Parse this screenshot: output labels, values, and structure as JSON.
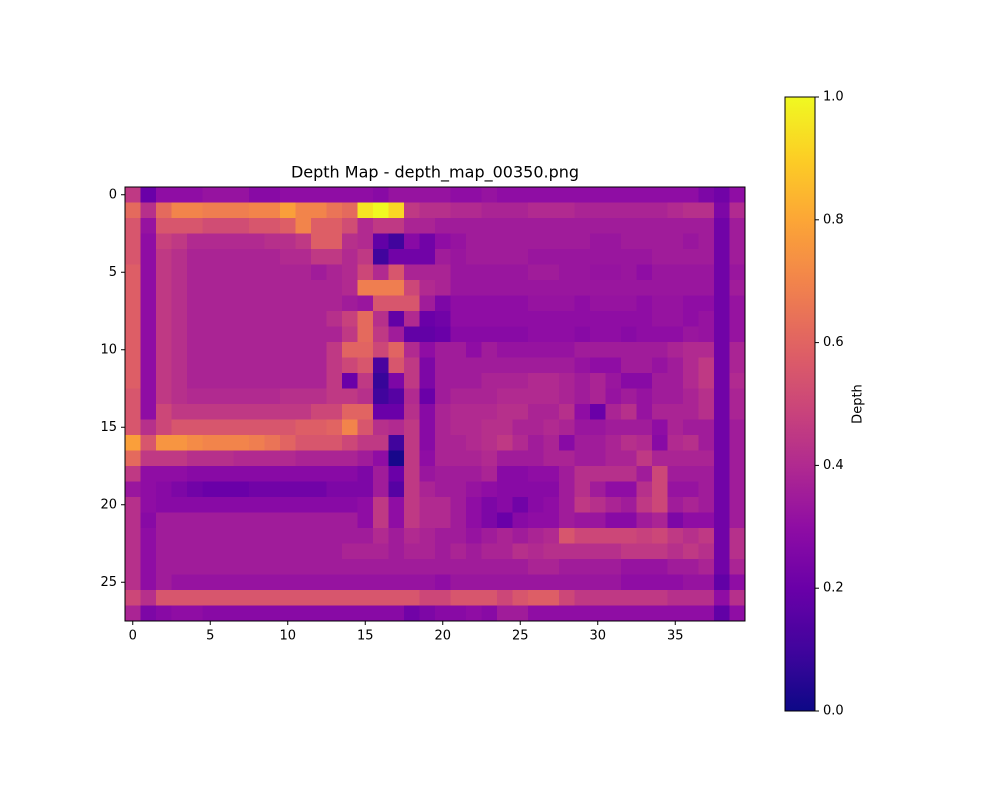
{
  "chart_data": {
    "type": "heatmap",
    "title": "Depth Map - depth_map_00350.png",
    "colormap": "plasma",
    "xlim": [
      -0.5,
      39.5
    ],
    "ylim": [
      27.5,
      -0.5
    ],
    "xticks": [
      0,
      5,
      10,
      15,
      20,
      25,
      30,
      35
    ],
    "yticks": [
      0,
      5,
      10,
      15,
      20,
      25
    ],
    "colorbar": {
      "label": "Depth",
      "lim": [
        0,
        1
      ],
      "ticks": [
        {
          "value": 0,
          "label": "0.0"
        },
        0.2,
        0.4,
        0.6,
        0.8,
        {
          "value": 1,
          "label": "1.0"
        }
      ]
    },
    "values": [
      [
        0.45,
        0.2,
        0.3,
        0.3,
        0.3,
        0.32,
        0.32,
        0.32,
        0.28,
        0.28,
        0.3,
        0.3,
        0.3,
        0.3,
        0.3,
        0.3,
        0.28,
        0.32,
        0.32,
        0.32,
        0.32,
        0.3,
        0.3,
        0.32,
        0.3,
        0.3,
        0.3,
        0.3,
        0.3,
        0.3,
        0.3,
        0.3,
        0.3,
        0.3,
        0.3,
        0.3,
        0.3,
        0.25,
        0.22,
        0.3
      ],
      [
        0.62,
        0.42,
        0.62,
        0.7,
        0.7,
        0.68,
        0.68,
        0.68,
        0.7,
        0.7,
        0.78,
        0.7,
        0.7,
        0.65,
        0.62,
        0.95,
        1.0,
        0.92,
        0.45,
        0.42,
        0.42,
        0.4,
        0.4,
        0.38,
        0.38,
        0.38,
        0.4,
        0.4,
        0.4,
        0.38,
        0.38,
        0.38,
        0.38,
        0.38,
        0.38,
        0.4,
        0.42,
        0.42,
        0.25,
        0.4
      ],
      [
        0.55,
        0.32,
        0.55,
        0.55,
        0.55,
        0.52,
        0.52,
        0.52,
        0.55,
        0.55,
        0.58,
        0.7,
        0.58,
        0.58,
        0.52,
        0.4,
        0.45,
        0.45,
        0.38,
        0.38,
        0.35,
        0.35,
        0.35,
        0.35,
        0.35,
        0.35,
        0.35,
        0.35,
        0.35,
        0.35,
        0.35,
        0.35,
        0.35,
        0.35,
        0.35,
        0.35,
        0.35,
        0.35,
        0.22,
        0.35
      ],
      [
        0.55,
        0.3,
        0.48,
        0.45,
        0.4,
        0.4,
        0.4,
        0.4,
        0.4,
        0.42,
        0.42,
        0.45,
        0.58,
        0.58,
        0.42,
        0.4,
        0.18,
        0.1,
        0.28,
        0.22,
        0.3,
        0.32,
        0.35,
        0.35,
        0.35,
        0.35,
        0.35,
        0.35,
        0.35,
        0.35,
        0.33,
        0.33,
        0.35,
        0.35,
        0.35,
        0.35,
        0.33,
        0.35,
        0.22,
        0.35
      ],
      [
        0.55,
        0.3,
        0.45,
        0.42,
        0.38,
        0.38,
        0.38,
        0.38,
        0.38,
        0.38,
        0.4,
        0.4,
        0.45,
        0.45,
        0.4,
        0.45,
        0.1,
        0.22,
        0.22,
        0.22,
        0.35,
        0.33,
        0.35,
        0.35,
        0.35,
        0.35,
        0.33,
        0.33,
        0.33,
        0.33,
        0.33,
        0.33,
        0.33,
        0.33,
        0.35,
        0.35,
        0.35,
        0.35,
        0.22,
        0.35
      ],
      [
        0.58,
        0.3,
        0.45,
        0.42,
        0.38,
        0.38,
        0.38,
        0.38,
        0.38,
        0.38,
        0.38,
        0.38,
        0.35,
        0.38,
        0.4,
        0.5,
        0.4,
        0.55,
        0.38,
        0.38,
        0.38,
        0.33,
        0.33,
        0.33,
        0.33,
        0.33,
        0.35,
        0.35,
        0.33,
        0.33,
        0.32,
        0.32,
        0.33,
        0.3,
        0.33,
        0.33,
        0.33,
        0.33,
        0.22,
        0.33
      ],
      [
        0.58,
        0.3,
        0.45,
        0.42,
        0.38,
        0.38,
        0.38,
        0.38,
        0.38,
        0.38,
        0.38,
        0.38,
        0.38,
        0.38,
        0.4,
        0.68,
        0.68,
        0.68,
        0.5,
        0.4,
        0.38,
        0.33,
        0.33,
        0.33,
        0.33,
        0.33,
        0.33,
        0.33,
        0.33,
        0.33,
        0.33,
        0.33,
        0.33,
        0.33,
        0.33,
        0.33,
        0.33,
        0.33,
        0.22,
        0.35
      ],
      [
        0.58,
        0.3,
        0.45,
        0.42,
        0.38,
        0.38,
        0.38,
        0.38,
        0.38,
        0.38,
        0.38,
        0.38,
        0.38,
        0.38,
        0.35,
        0.33,
        0.55,
        0.55,
        0.55,
        0.35,
        0.25,
        0.3,
        0.3,
        0.3,
        0.3,
        0.3,
        0.32,
        0.32,
        0.32,
        0.3,
        0.32,
        0.32,
        0.32,
        0.3,
        0.32,
        0.32,
        0.3,
        0.3,
        0.22,
        0.32
      ],
      [
        0.58,
        0.3,
        0.45,
        0.42,
        0.38,
        0.38,
        0.38,
        0.38,
        0.38,
        0.38,
        0.38,
        0.38,
        0.38,
        0.42,
        0.48,
        0.62,
        0.42,
        0.18,
        0.4,
        0.2,
        0.22,
        0.3,
        0.3,
        0.3,
        0.3,
        0.3,
        0.3,
        0.3,
        0.3,
        0.3,
        0.3,
        0.3,
        0.3,
        0.3,
        0.32,
        0.32,
        0.3,
        0.32,
        0.22,
        0.32
      ],
      [
        0.58,
        0.3,
        0.45,
        0.42,
        0.38,
        0.38,
        0.38,
        0.38,
        0.38,
        0.38,
        0.38,
        0.38,
        0.38,
        0.38,
        0.45,
        0.62,
        0.45,
        0.35,
        0.18,
        0.18,
        0.2,
        0.28,
        0.28,
        0.28,
        0.28,
        0.28,
        0.3,
        0.3,
        0.3,
        0.28,
        0.3,
        0.3,
        0.28,
        0.3,
        0.3,
        0.3,
        0.33,
        0.32,
        0.22,
        0.32
      ],
      [
        0.58,
        0.3,
        0.45,
        0.42,
        0.38,
        0.38,
        0.38,
        0.38,
        0.38,
        0.38,
        0.38,
        0.38,
        0.38,
        0.45,
        0.6,
        0.6,
        0.5,
        0.6,
        0.4,
        0.3,
        0.35,
        0.35,
        0.3,
        0.35,
        0.32,
        0.32,
        0.32,
        0.32,
        0.32,
        0.35,
        0.35,
        0.35,
        0.35,
        0.35,
        0.35,
        0.38,
        0.4,
        0.4,
        0.22,
        0.38
      ],
      [
        0.58,
        0.3,
        0.45,
        0.42,
        0.38,
        0.38,
        0.38,
        0.38,
        0.38,
        0.38,
        0.38,
        0.38,
        0.38,
        0.45,
        0.5,
        0.55,
        0.12,
        0.55,
        0.45,
        0.25,
        0.35,
        0.35,
        0.35,
        0.35,
        0.35,
        0.35,
        0.35,
        0.35,
        0.35,
        0.32,
        0.3,
        0.3,
        0.35,
        0.35,
        0.32,
        0.35,
        0.4,
        0.45,
        0.22,
        0.38
      ],
      [
        0.58,
        0.3,
        0.45,
        0.42,
        0.38,
        0.38,
        0.38,
        0.38,
        0.38,
        0.38,
        0.38,
        0.38,
        0.38,
        0.45,
        0.2,
        0.45,
        0.08,
        0.25,
        0.45,
        0.25,
        0.35,
        0.35,
        0.35,
        0.38,
        0.38,
        0.38,
        0.4,
        0.4,
        0.38,
        0.35,
        0.38,
        0.33,
        0.28,
        0.28,
        0.35,
        0.35,
        0.4,
        0.45,
        0.22,
        0.4
      ],
      [
        0.55,
        0.3,
        0.45,
        0.42,
        0.4,
        0.4,
        0.4,
        0.4,
        0.4,
        0.4,
        0.42,
        0.42,
        0.42,
        0.45,
        0.45,
        0.42,
        0.1,
        0.15,
        0.4,
        0.2,
        0.35,
        0.38,
        0.38,
        0.38,
        0.4,
        0.4,
        0.4,
        0.4,
        0.38,
        0.35,
        0.38,
        0.32,
        0.35,
        0.32,
        0.35,
        0.35,
        0.38,
        0.42,
        0.22,
        0.38
      ],
      [
        0.55,
        0.3,
        0.5,
        0.45,
        0.45,
        0.45,
        0.45,
        0.45,
        0.45,
        0.45,
        0.45,
        0.45,
        0.5,
        0.5,
        0.6,
        0.6,
        0.2,
        0.2,
        0.42,
        0.28,
        0.38,
        0.4,
        0.4,
        0.4,
        0.42,
        0.42,
        0.38,
        0.38,
        0.42,
        0.3,
        0.2,
        0.38,
        0.42,
        0.32,
        0.38,
        0.38,
        0.38,
        0.42,
        0.22,
        0.38
      ],
      [
        0.55,
        0.42,
        0.5,
        0.55,
        0.55,
        0.55,
        0.55,
        0.55,
        0.55,
        0.55,
        0.55,
        0.58,
        0.58,
        0.6,
        0.7,
        0.55,
        0.42,
        0.4,
        0.45,
        0.28,
        0.38,
        0.4,
        0.4,
        0.42,
        0.42,
        0.38,
        0.38,
        0.4,
        0.38,
        0.33,
        0.33,
        0.35,
        0.35,
        0.35,
        0.3,
        0.38,
        0.35,
        0.35,
        0.22,
        0.35
      ],
      [
        0.78,
        0.55,
        0.75,
        0.75,
        0.72,
        0.7,
        0.7,
        0.7,
        0.68,
        0.65,
        0.6,
        0.55,
        0.55,
        0.55,
        0.5,
        0.45,
        0.45,
        0.1,
        0.45,
        0.28,
        0.38,
        0.38,
        0.4,
        0.42,
        0.45,
        0.4,
        0.35,
        0.38,
        0.28,
        0.35,
        0.35,
        0.38,
        0.42,
        0.4,
        0.28,
        0.4,
        0.42,
        0.35,
        0.22,
        0.35
      ],
      [
        0.62,
        0.45,
        0.45,
        0.45,
        0.42,
        0.42,
        0.42,
        0.4,
        0.4,
        0.4,
        0.4,
        0.38,
        0.38,
        0.38,
        0.38,
        0.35,
        0.3,
        0.02,
        0.45,
        0.3,
        0.38,
        0.38,
        0.38,
        0.4,
        0.35,
        0.35,
        0.35,
        0.38,
        0.38,
        0.35,
        0.35,
        0.38,
        0.38,
        0.45,
        0.38,
        0.38,
        0.38,
        0.38,
        0.22,
        0.35
      ],
      [
        0.45,
        0.3,
        0.3,
        0.3,
        0.28,
        0.28,
        0.28,
        0.28,
        0.28,
        0.28,
        0.28,
        0.28,
        0.28,
        0.28,
        0.28,
        0.25,
        0.35,
        0.2,
        0.45,
        0.33,
        0.35,
        0.35,
        0.35,
        0.38,
        0.28,
        0.28,
        0.3,
        0.3,
        0.35,
        0.42,
        0.42,
        0.42,
        0.42,
        0.35,
        0.5,
        0.35,
        0.35,
        0.35,
        0.22,
        0.35
      ],
      [
        0.33,
        0.3,
        0.28,
        0.25,
        0.22,
        0.2,
        0.2,
        0.2,
        0.22,
        0.22,
        0.22,
        0.22,
        0.22,
        0.25,
        0.25,
        0.25,
        0.35,
        0.15,
        0.45,
        0.38,
        0.35,
        0.35,
        0.32,
        0.3,
        0.28,
        0.28,
        0.28,
        0.28,
        0.35,
        0.42,
        0.35,
        0.3,
        0.3,
        0.42,
        0.5,
        0.32,
        0.32,
        0.35,
        0.22,
        0.35
      ],
      [
        0.42,
        0.3,
        0.28,
        0.28,
        0.28,
        0.28,
        0.28,
        0.28,
        0.28,
        0.28,
        0.28,
        0.28,
        0.28,
        0.28,
        0.28,
        0.3,
        0.45,
        0.3,
        0.45,
        0.4,
        0.4,
        0.35,
        0.3,
        0.25,
        0.28,
        0.22,
        0.28,
        0.3,
        0.35,
        0.45,
        0.42,
        0.38,
        0.35,
        0.45,
        0.5,
        0.35,
        0.38,
        0.35,
        0.22,
        0.35
      ],
      [
        0.42,
        0.28,
        0.35,
        0.35,
        0.35,
        0.35,
        0.35,
        0.35,
        0.35,
        0.35,
        0.35,
        0.35,
        0.35,
        0.35,
        0.35,
        0.3,
        0.45,
        0.3,
        0.45,
        0.4,
        0.4,
        0.35,
        0.3,
        0.25,
        0.2,
        0.28,
        0.3,
        0.3,
        0.35,
        0.33,
        0.33,
        0.28,
        0.28,
        0.35,
        0.38,
        0.25,
        0.3,
        0.3,
        0.22,
        0.35
      ],
      [
        0.42,
        0.3,
        0.35,
        0.35,
        0.35,
        0.35,
        0.35,
        0.35,
        0.35,
        0.35,
        0.35,
        0.35,
        0.35,
        0.35,
        0.35,
        0.35,
        0.4,
        0.35,
        0.4,
        0.38,
        0.35,
        0.35,
        0.32,
        0.35,
        0.38,
        0.35,
        0.38,
        0.4,
        0.55,
        0.5,
        0.5,
        0.5,
        0.5,
        0.48,
        0.5,
        0.45,
        0.42,
        0.45,
        0.22,
        0.42
      ],
      [
        0.42,
        0.3,
        0.35,
        0.35,
        0.35,
        0.35,
        0.35,
        0.35,
        0.35,
        0.35,
        0.35,
        0.35,
        0.35,
        0.35,
        0.38,
        0.38,
        0.38,
        0.35,
        0.38,
        0.38,
        0.35,
        0.38,
        0.35,
        0.38,
        0.38,
        0.42,
        0.4,
        0.42,
        0.42,
        0.42,
        0.42,
        0.42,
        0.45,
        0.45,
        0.45,
        0.42,
        0.45,
        0.42,
        0.22,
        0.42
      ],
      [
        0.42,
        0.3,
        0.35,
        0.35,
        0.35,
        0.35,
        0.35,
        0.35,
        0.35,
        0.35,
        0.35,
        0.35,
        0.35,
        0.35,
        0.35,
        0.35,
        0.35,
        0.35,
        0.35,
        0.35,
        0.35,
        0.35,
        0.35,
        0.35,
        0.35,
        0.35,
        0.38,
        0.38,
        0.35,
        0.35,
        0.35,
        0.35,
        0.32,
        0.32,
        0.32,
        0.35,
        0.35,
        0.38,
        0.22,
        0.38
      ],
      [
        0.42,
        0.3,
        0.35,
        0.32,
        0.32,
        0.32,
        0.32,
        0.32,
        0.32,
        0.32,
        0.32,
        0.32,
        0.32,
        0.32,
        0.32,
        0.32,
        0.32,
        0.32,
        0.32,
        0.32,
        0.3,
        0.33,
        0.33,
        0.33,
        0.33,
        0.33,
        0.33,
        0.33,
        0.33,
        0.33,
        0.33,
        0.33,
        0.3,
        0.3,
        0.3,
        0.3,
        0.32,
        0.32,
        0.18,
        0.3
      ],
      [
        0.5,
        0.42,
        0.55,
        0.55,
        0.55,
        0.55,
        0.55,
        0.55,
        0.55,
        0.55,
        0.55,
        0.55,
        0.55,
        0.55,
        0.55,
        0.55,
        0.55,
        0.55,
        0.55,
        0.5,
        0.5,
        0.55,
        0.55,
        0.55,
        0.5,
        0.55,
        0.58,
        0.58,
        0.5,
        0.45,
        0.45,
        0.45,
        0.45,
        0.45,
        0.45,
        0.42,
        0.42,
        0.42,
        0.3,
        0.42
      ],
      [
        0.38,
        0.25,
        0.28,
        0.3,
        0.3,
        0.28,
        0.28,
        0.28,
        0.28,
        0.28,
        0.28,
        0.28,
        0.28,
        0.28,
        0.28,
        0.28,
        0.28,
        0.28,
        0.22,
        0.25,
        0.28,
        0.28,
        0.3,
        0.28,
        0.35,
        0.35,
        0.3,
        0.3,
        0.3,
        0.3,
        0.3,
        0.3,
        0.3,
        0.3,
        0.3,
        0.3,
        0.3,
        0.3,
        0.18,
        0.3
      ]
    ]
  }
}
